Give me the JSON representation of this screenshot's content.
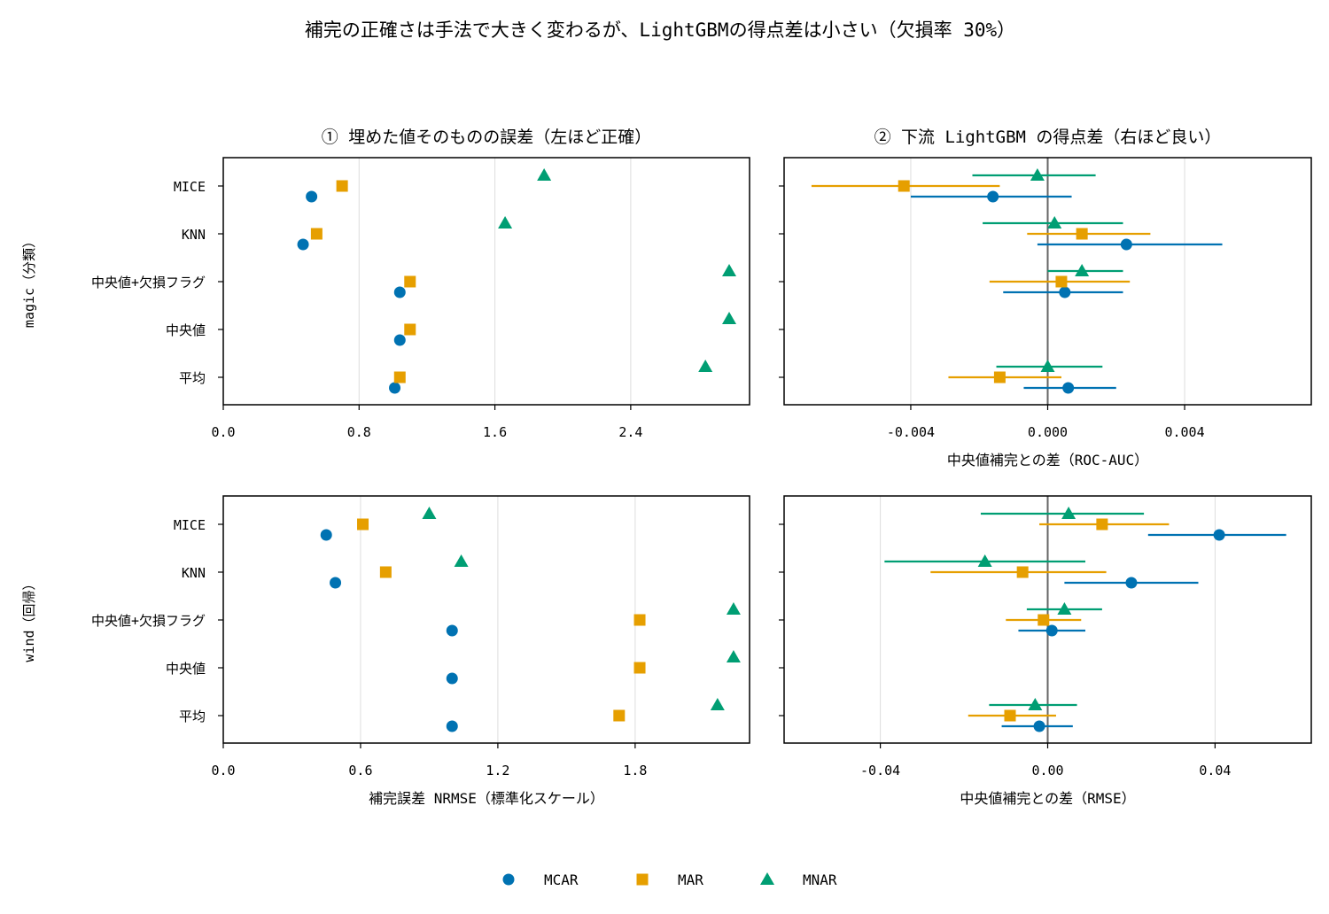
{
  "suptitle": "補完の正確さは手法で大きく変わるが、LightGBMの得点差は小さい（欠損率 30%）",
  "colors": {
    "MCAR": "#0072B2",
    "MAR": "#E69F00",
    "MNAR": "#009E73",
    "zero_line": "#666666",
    "grid": "#dddddd"
  },
  "legend": {
    "placement": "bottom-center",
    "entries": [
      "MCAR",
      "MAR",
      "MNAR"
    ]
  },
  "chart_data": [
    {
      "type": "scatter",
      "id": "magic-error",
      "title": "① 埋めた値そのものの誤差（左ほど正確）",
      "ylabel": "magic（分類）",
      "xlabel": "",
      "categories": [
        "MICE",
        "KNN",
        "中央値+欠損フラグ",
        "中央値",
        "平均"
      ],
      "xlim": [
        0,
        3.1
      ],
      "xticks": [
        0.0,
        0.8,
        1.6,
        2.4
      ],
      "xtick_labels": [
        "0.0",
        "0.8",
        "1.6",
        "2.4"
      ],
      "grid": "x",
      "series": [
        {
          "name": "MCAR",
          "marker": "circle",
          "values": [
            0.52,
            0.47,
            1.04,
            1.04,
            1.01
          ]
        },
        {
          "name": "MAR",
          "marker": "square",
          "values": [
            0.7,
            0.55,
            1.1,
            1.1,
            1.04
          ]
        },
        {
          "name": "MNAR",
          "marker": "triangle",
          "values": [
            1.89,
            1.66,
            2.98,
            2.98,
            2.84
          ]
        }
      ]
    },
    {
      "type": "scatter",
      "id": "magic-diff",
      "title": "② 下流 LightGBM の得点差（右ほど良い）",
      "xlabel": "中央値補完との差（ROC-AUC）",
      "categories": [
        "MICE",
        "KNN",
        "中央値+欠損フラグ",
        "中央値",
        "平均"
      ],
      "xlim": [
        -0.0077,
        0.0077
      ],
      "xticks": [
        -0.004,
        0.0,
        0.004
      ],
      "xtick_labels": [
        "-0.004",
        "0.000",
        "0.004"
      ],
      "grid": "x",
      "zero_line": true,
      "series": [
        {
          "name": "MCAR",
          "marker": "circle",
          "values": [
            -0.0016,
            0.0023,
            0.0005,
            null,
            0.0006
          ],
          "ci_low": [
            -0.004,
            -0.0003,
            -0.0013,
            null,
            -0.0007
          ],
          "ci_high": [
            0.0007,
            0.0051,
            0.0022,
            null,
            0.002
          ]
        },
        {
          "name": "MAR",
          "marker": "square",
          "values": [
            -0.0042,
            0.001,
            0.0004,
            null,
            -0.0014
          ],
          "ci_low": [
            -0.0069,
            -0.0006,
            -0.0017,
            null,
            -0.0029
          ],
          "ci_high": [
            -0.0014,
            0.003,
            0.0024,
            null,
            0.0004
          ]
        },
        {
          "name": "MNAR",
          "marker": "triangle",
          "values": [
            -0.0003,
            0.0002,
            0.001,
            null,
            0.0
          ],
          "ci_low": [
            -0.0022,
            -0.0019,
            0.0,
            null,
            -0.0015
          ],
          "ci_high": [
            0.0014,
            0.0022,
            0.0022,
            null,
            0.0016
          ]
        }
      ]
    },
    {
      "type": "scatter",
      "id": "wind-error",
      "title": "",
      "ylabel": "wind（回帰）",
      "xlabel": "補完誤差 NRMSE（標準化スケール）",
      "categories": [
        "MICE",
        "KNN",
        "中央値+欠損フラグ",
        "中央値",
        "平均"
      ],
      "xlim": [
        0,
        2.3
      ],
      "xticks": [
        0.0,
        0.6,
        1.2,
        1.8
      ],
      "xtick_labels": [
        "0.0",
        "0.6",
        "1.2",
        "1.8"
      ],
      "grid": "x",
      "series": [
        {
          "name": "MCAR",
          "marker": "circle",
          "values": [
            0.45,
            0.49,
            1.0,
            1.0,
            1.0
          ]
        },
        {
          "name": "MAR",
          "marker": "square",
          "values": [
            0.61,
            0.71,
            1.82,
            1.82,
            1.73
          ]
        },
        {
          "name": "MNAR",
          "marker": "triangle",
          "values": [
            0.9,
            1.04,
            2.23,
            2.23,
            2.16
          ]
        }
      ]
    },
    {
      "type": "scatter",
      "id": "wind-diff",
      "title": "",
      "xlabel": "中央値補完との差（RMSE）",
      "categories": [
        "MICE",
        "KNN",
        "中央値+欠損フラグ",
        "中央値",
        "平均"
      ],
      "xlim": [
        -0.063,
        0.063
      ],
      "xticks": [
        -0.04,
        0.0,
        0.04
      ],
      "xtick_labels": [
        "-0.04",
        "0.00",
        "0.04"
      ],
      "grid": "x",
      "zero_line": true,
      "series": [
        {
          "name": "MCAR",
          "marker": "circle",
          "values": [
            0.041,
            0.02,
            0.001,
            null,
            -0.002
          ],
          "ci_low": [
            0.024,
            0.004,
            -0.007,
            null,
            -0.011
          ],
          "ci_high": [
            0.057,
            0.036,
            0.009,
            null,
            0.006
          ]
        },
        {
          "name": "MAR",
          "marker": "square",
          "values": [
            0.013,
            -0.006,
            -0.001,
            null,
            -0.009
          ],
          "ci_low": [
            -0.002,
            -0.028,
            -0.01,
            null,
            -0.019
          ],
          "ci_high": [
            0.029,
            0.014,
            0.008,
            null,
            0.002
          ]
        },
        {
          "name": "MNAR",
          "marker": "triangle",
          "values": [
            0.005,
            -0.015,
            0.004,
            null,
            -0.003
          ],
          "ci_low": [
            -0.016,
            -0.039,
            -0.005,
            null,
            -0.014
          ],
          "ci_high": [
            0.023,
            0.009,
            0.013,
            null,
            0.007
          ]
        }
      ]
    }
  ]
}
